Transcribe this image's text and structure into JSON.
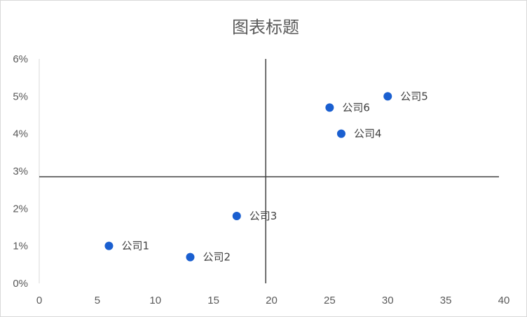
{
  "chart_data": {
    "type": "scatter",
    "title": "图表标题",
    "xlabel": "",
    "ylabel": "",
    "xlim": [
      0,
      40
    ],
    "ylim": [
      0,
      0.06
    ],
    "x_ticks": [
      "0",
      "5",
      "10",
      "15",
      "20",
      "25",
      "30",
      "35",
      "40"
    ],
    "y_ticks": [
      "0%",
      "1%",
      "2%",
      "3%",
      "4%",
      "5%",
      "6%"
    ],
    "grid": false,
    "legend": "none",
    "marker_color": "#1a5fd0",
    "reference_lines": {
      "x": 19.5,
      "y": 0.0285
    },
    "points": [
      {
        "label": "公司1",
        "x": 6,
        "y": 0.01
      },
      {
        "label": "公司2",
        "x": 13,
        "y": 0.007
      },
      {
        "label": "公司3",
        "x": 17,
        "y": 0.018
      },
      {
        "label": "公司4",
        "x": 26,
        "y": 0.04
      },
      {
        "label": "公司5",
        "x": 30,
        "y": 0.05
      },
      {
        "label": "公司6",
        "x": 25,
        "y": 0.047
      }
    ]
  }
}
